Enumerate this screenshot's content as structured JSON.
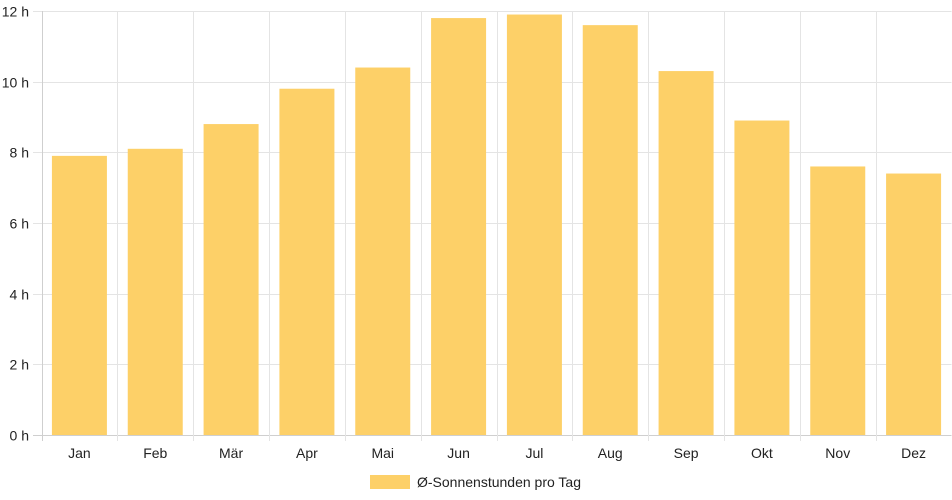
{
  "chart_data": {
    "type": "bar",
    "categories": [
      "Jan",
      "Feb",
      "Mär",
      "Apr",
      "Mai",
      "Jun",
      "Jul",
      "Aug",
      "Sep",
      "Okt",
      "Nov",
      "Dez"
    ],
    "series": [
      {
        "name": "Ø-Sonnenstunden pro Tag",
        "values": [
          7.9,
          8.1,
          8.8,
          9.8,
          10.4,
          11.8,
          11.9,
          11.6,
          10.3,
          8.9,
          7.6,
          7.4
        ],
        "color": "#fdd068"
      }
    ],
    "ylim": [
      0,
      12
    ],
    "yticks": [
      0,
      2,
      4,
      6,
      8,
      10,
      12
    ],
    "ytick_suffix": " h",
    "grid": true,
    "legend_position": "bottom"
  }
}
